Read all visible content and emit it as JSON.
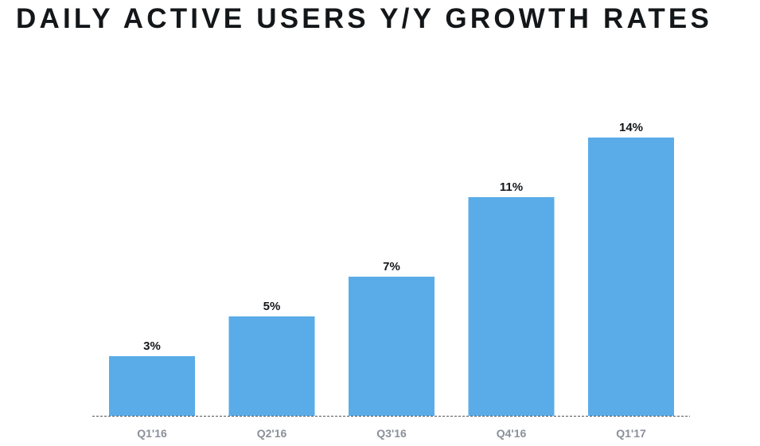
{
  "title": "DAILY ACTIVE USERS Y/Y GROWTH RATES",
  "colors": {
    "bar": "#5aace8",
    "baseline": "#555555",
    "title": "#14171a",
    "data_label": "#14171a",
    "tick_label": "#8a9099"
  },
  "chart_data": {
    "type": "bar",
    "title": "DAILY ACTIVE USERS Y/Y GROWTH RATES",
    "categories": [
      "Q1'16",
      "Q2'16",
      "Q3'16",
      "Q4'16",
      "Q1'17"
    ],
    "values": [
      3,
      5,
      7,
      11,
      14
    ],
    "value_labels": [
      "3%",
      "5%",
      "7%",
      "11%",
      "14%"
    ],
    "unit": "%",
    "xlabel": "",
    "ylabel": "",
    "ylim": [
      0,
      14
    ],
    "grid": false,
    "legend": "none",
    "baseline_style": "dashed"
  }
}
